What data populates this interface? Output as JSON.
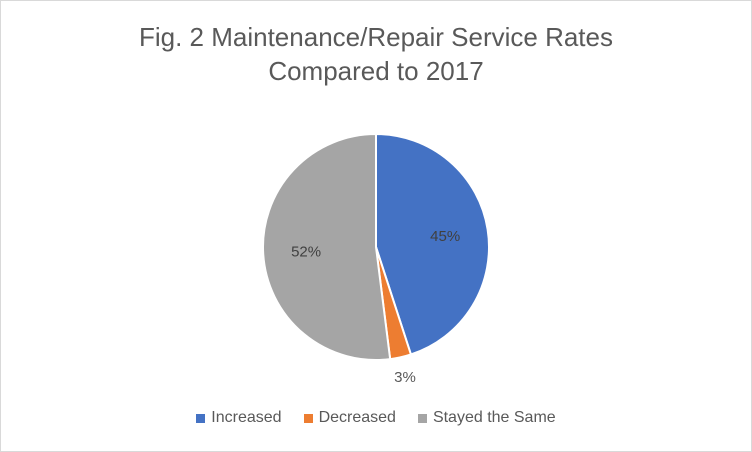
{
  "chart_data": {
    "type": "pie",
    "title": [
      "Fig. 2 Maintenance/Repair Service Rates",
      "Compared to 2017"
    ],
    "slices": [
      {
        "label": "Increased",
        "value": 45,
        "display": "45%",
        "color": "#4472C4"
      },
      {
        "label": "Decreased",
        "value": 3,
        "display": "3%",
        "color": "#ED7D31"
      },
      {
        "label": "Stayed the Same",
        "value": 52,
        "display": "52%",
        "color": "#A5A5A5"
      }
    ],
    "start_angle_deg": 0,
    "direction": "clockwise",
    "legend_position": "bottom"
  }
}
